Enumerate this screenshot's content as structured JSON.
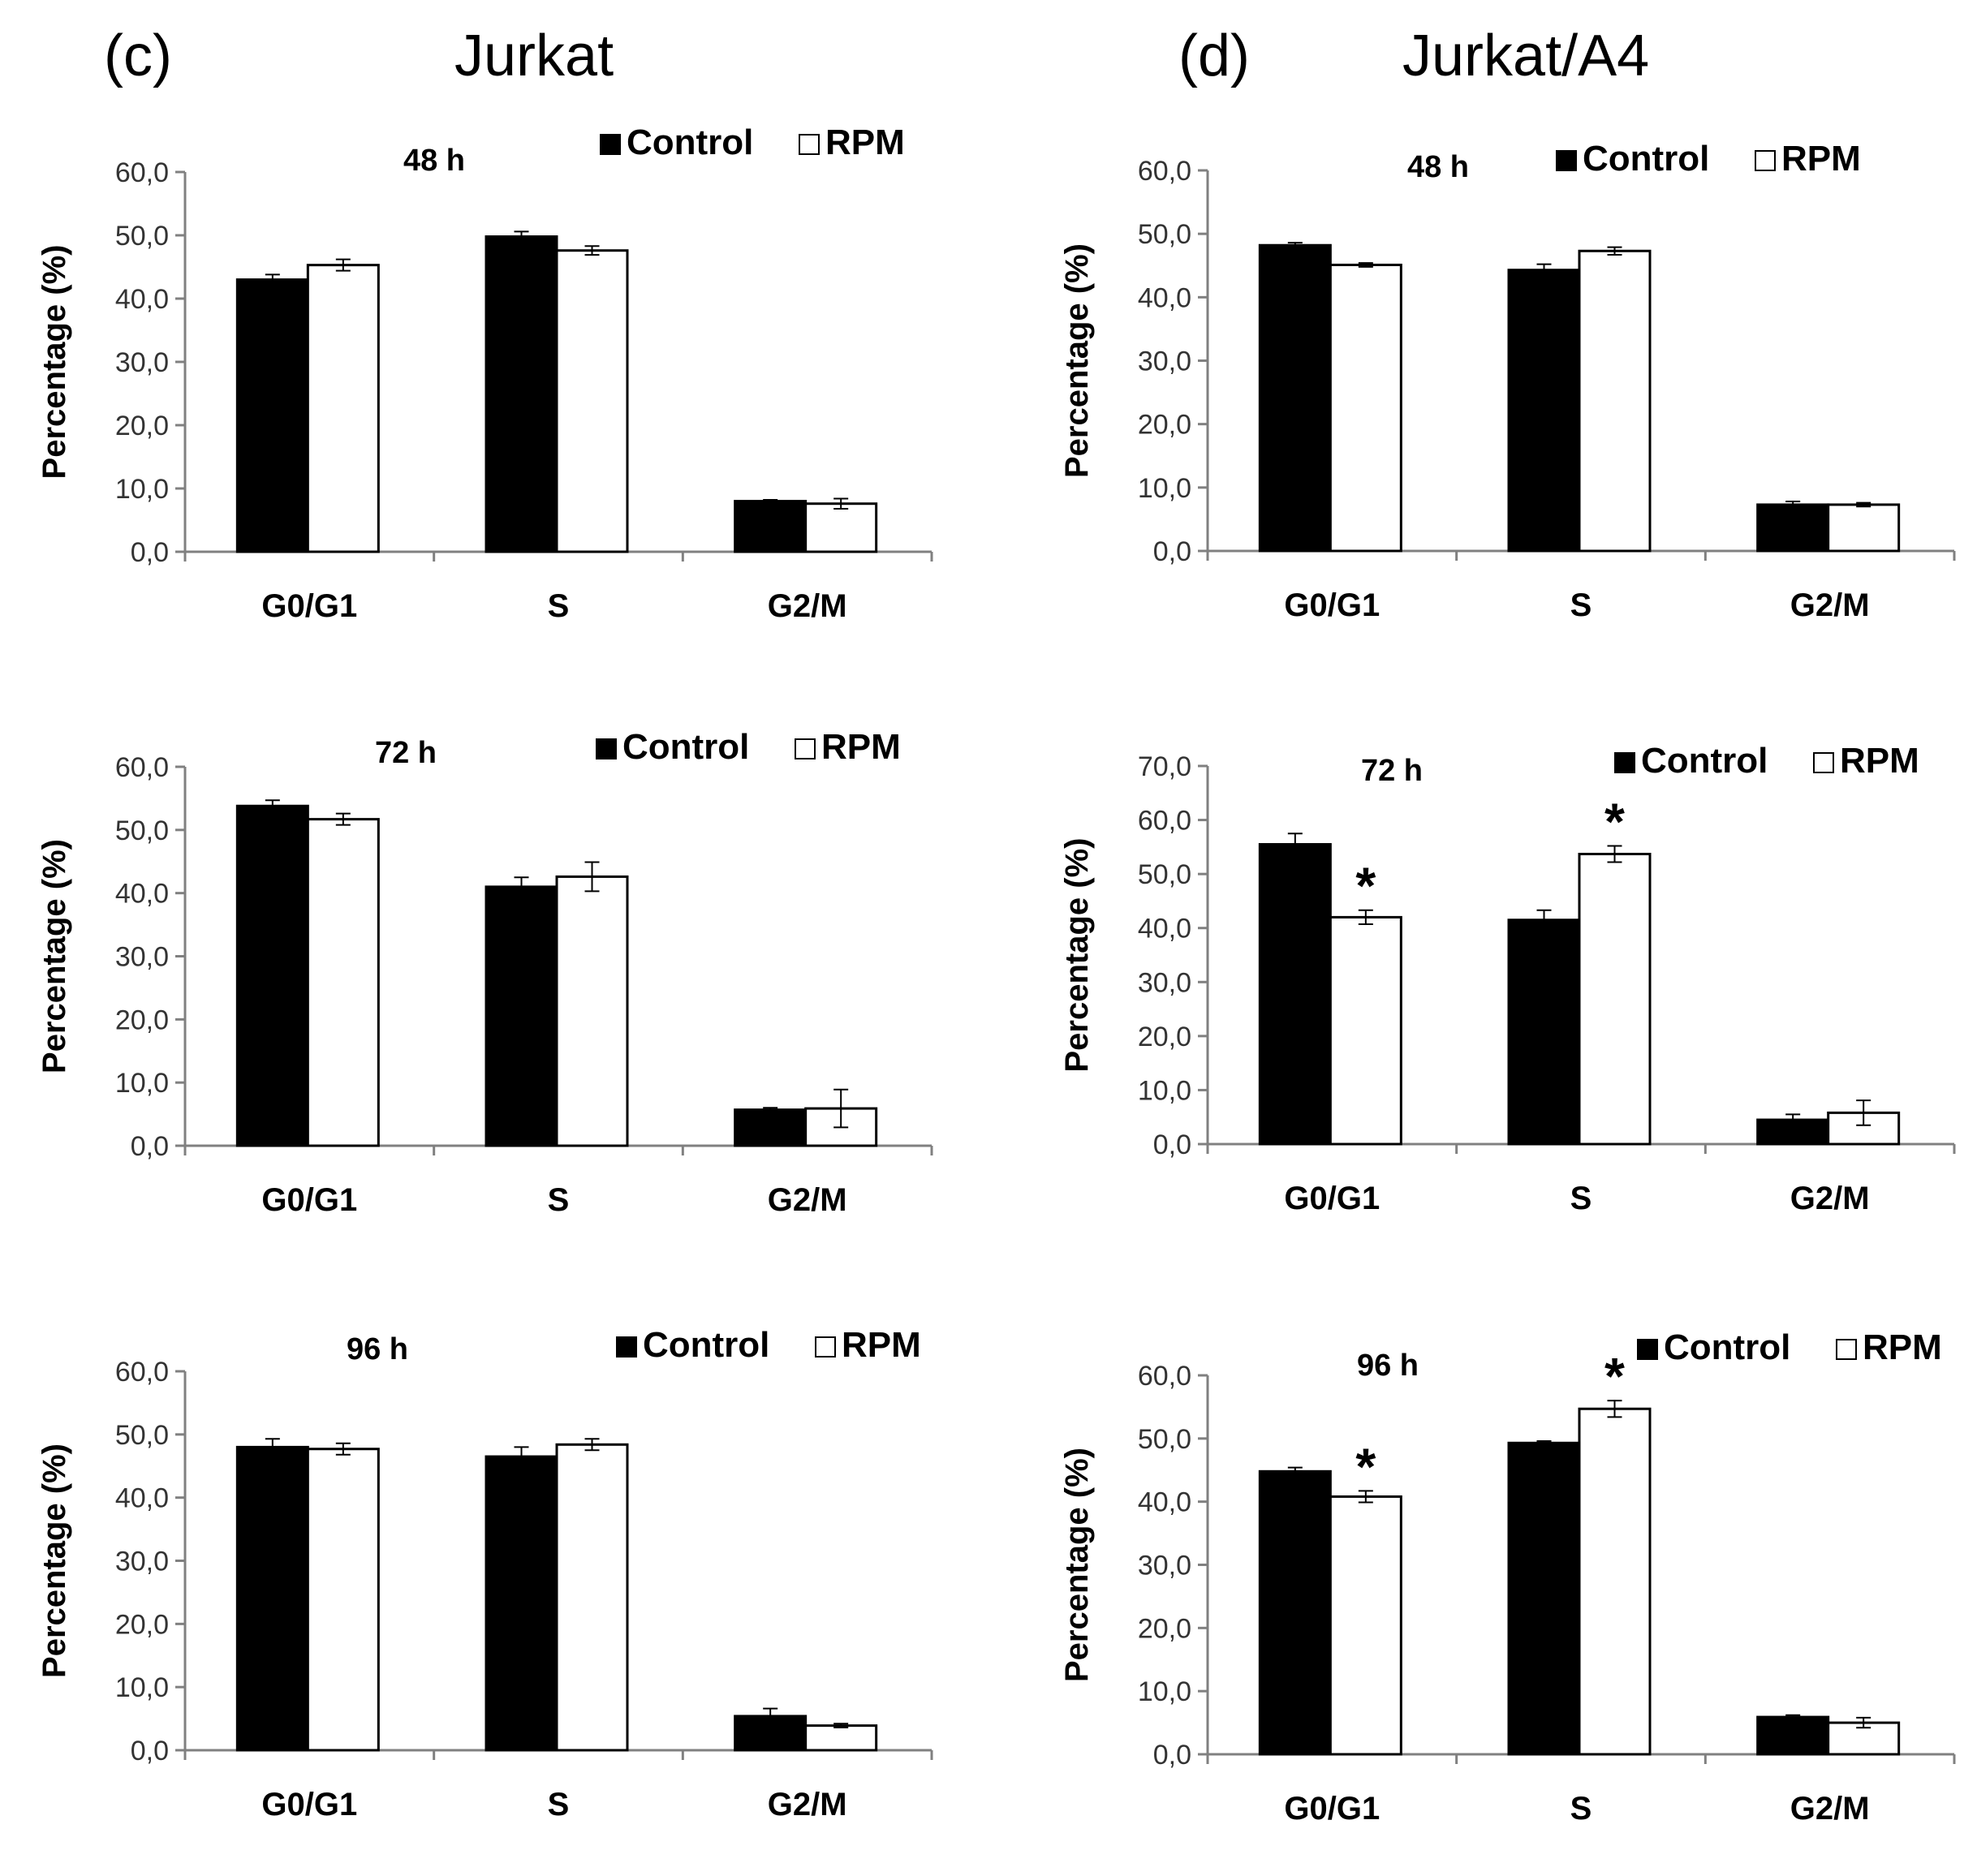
{
  "figure": {
    "left_panel_label": "(c)",
    "left_panel_title": "Jurkat",
    "right_panel_label": "(d)",
    "right_panel_title": "Jurkat/A4"
  },
  "colors": {
    "control": "#000000",
    "rpm": "#ffffff",
    "axis": "#808080",
    "text": "#000000"
  },
  "chart_data": [
    {
      "type": "bar",
      "panel": "c",
      "title": "48 h",
      "ylabel": "Percentage (%)",
      "ylim": [
        0,
        60
      ],
      "yticks": [
        "0,0",
        "10,0",
        "20,0",
        "30,0",
        "40,0",
        "50,0",
        "60,0"
      ],
      "categories": [
        "G0/G1",
        "S",
        "G2/M"
      ],
      "legend": [
        "Control",
        "RPM"
      ],
      "series": [
        {
          "name": "Control",
          "values": [
            43.0,
            49.8,
            8.0
          ],
          "errors": [
            0.8,
            0.8,
            0.2
          ]
        },
        {
          "name": "RPM",
          "values": [
            45.3,
            47.6,
            7.6
          ],
          "errors": [
            0.9,
            0.7,
            0.8
          ]
        }
      ],
      "significance": [
        "",
        "",
        "",
        "",
        "",
        ""
      ]
    },
    {
      "type": "bar",
      "panel": "c",
      "title": "72 h",
      "ylabel": "Percentage (%)",
      "ylim": [
        0,
        60
      ],
      "yticks": [
        "0,0",
        "10,0",
        "20,0",
        "30,0",
        "40,0",
        "50,0",
        "60,0"
      ],
      "categories": [
        "G0/G1",
        "S",
        "G2/M"
      ],
      "legend": [
        "Control",
        "RPM"
      ],
      "series": [
        {
          "name": "Control",
          "values": [
            53.8,
            41.0,
            5.7
          ],
          "errors": [
            0.9,
            1.5,
            0.3
          ]
        },
        {
          "name": "RPM",
          "values": [
            51.7,
            42.6,
            5.9
          ],
          "errors": [
            0.9,
            2.3,
            3.0
          ]
        }
      ],
      "significance": [
        "",
        "",
        "",
        "",
        "",
        ""
      ]
    },
    {
      "type": "bar",
      "panel": "c",
      "title": "96  h",
      "ylabel": "Percentage (%)",
      "ylim": [
        0,
        60
      ],
      "yticks": [
        "0,0",
        "10,0",
        "20,0",
        "30,0",
        "40,0",
        "50,0",
        "60,0"
      ],
      "categories": [
        "G0/G1",
        "S",
        "G2/M"
      ],
      "legend": [
        "Control",
        "RPM"
      ],
      "series": [
        {
          "name": "Control",
          "values": [
            48.0,
            46.5,
            5.4
          ],
          "errors": [
            1.3,
            1.5,
            1.2
          ]
        },
        {
          "name": "RPM",
          "values": [
            47.7,
            48.4,
            3.9
          ],
          "errors": [
            0.9,
            0.9,
            0.3
          ]
        }
      ],
      "significance": [
        "",
        "",
        "",
        "",
        "",
        ""
      ]
    },
    {
      "type": "bar",
      "panel": "d",
      "title": "48 h",
      "ylabel": "Percentage (%)",
      "ylim": [
        0,
        60
      ],
      "yticks": [
        "0,0",
        "10,0",
        "20,0",
        "30,0",
        "40,0",
        "50,0",
        "60,0"
      ],
      "categories": [
        "G0/G1",
        "S",
        "G2/M"
      ],
      "legend": [
        "Control",
        "RPM"
      ],
      "series": [
        {
          "name": "Control",
          "values": [
            48.2,
            44.3,
            7.3
          ],
          "errors": [
            0.4,
            0.9,
            0.5
          ]
        },
        {
          "name": "RPM",
          "values": [
            45.1,
            47.3,
            7.3
          ],
          "errors": [
            0.3,
            0.6,
            0.3
          ]
        }
      ],
      "significance": [
        "",
        "",
        "",
        "",
        "",
        ""
      ]
    },
    {
      "type": "bar",
      "panel": "d",
      "title": "72 h",
      "ylabel": "Percentage (%)",
      "ylim": [
        0,
        70
      ],
      "yticks": [
        "0,0",
        "10,0",
        "20,0",
        "30,0",
        "40,0",
        "50,0",
        "60,0",
        "70,0"
      ],
      "categories": [
        "G0/G1",
        "S",
        "G2/M"
      ],
      "legend": [
        "Control",
        "RPM"
      ],
      "series": [
        {
          "name": "Control",
          "values": [
            55.5,
            41.5,
            4.5
          ],
          "errors": [
            2.0,
            1.8,
            1.0
          ]
        },
        {
          "name": "RPM",
          "values": [
            42.0,
            53.7,
            5.8
          ],
          "errors": [
            1.3,
            1.5,
            2.3
          ]
        }
      ],
      "significance": [
        "",
        "",
        "",
        "*",
        "*",
        ""
      ]
    },
    {
      "type": "bar",
      "panel": "d",
      "title": "96 h",
      "ylabel": "Percentage (%)",
      "ylim": [
        0,
        60
      ],
      "yticks": [
        "0,0",
        "10,0",
        "20,0",
        "30,0",
        "40,0",
        "50,0",
        "60,0"
      ],
      "categories": [
        "G0/G1",
        "S",
        "G2/M"
      ],
      "legend": [
        "Control",
        "RPM"
      ],
      "series": [
        {
          "name": "Control",
          "values": [
            44.8,
            49.3,
            5.9
          ],
          "errors": [
            0.6,
            0.3,
            0.3
          ]
        },
        {
          "name": "RPM",
          "values": [
            40.8,
            54.7,
            5.0
          ],
          "errors": [
            0.9,
            1.3,
            0.8
          ]
        }
      ],
      "significance": [
        "",
        "",
        "",
        "*",
        "*",
        ""
      ]
    }
  ]
}
